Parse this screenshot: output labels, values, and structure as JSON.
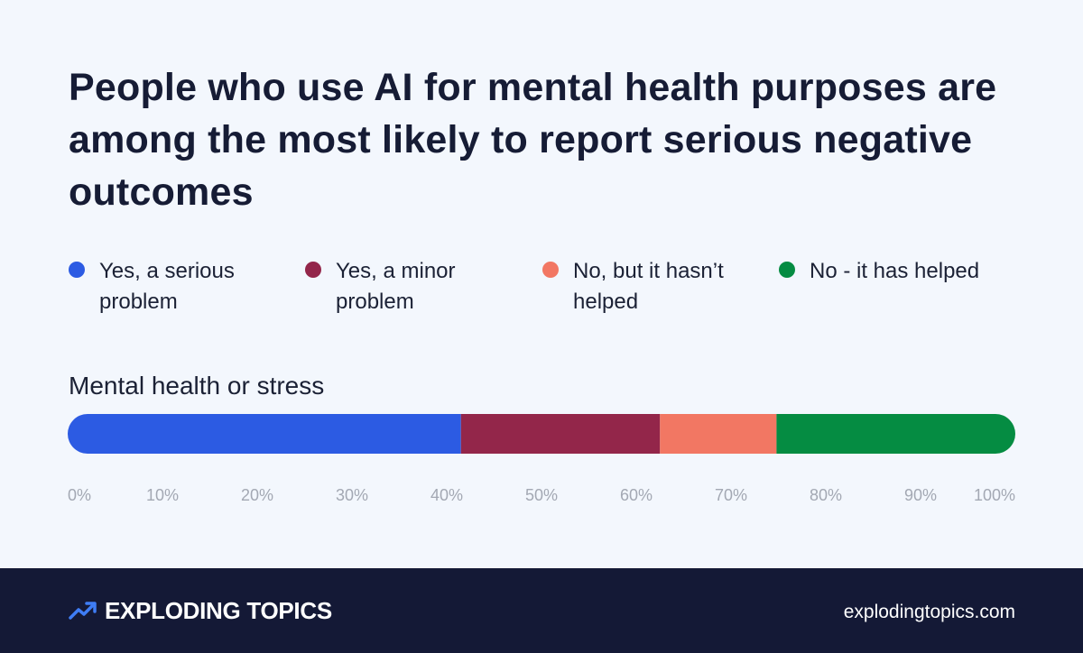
{
  "title": "People who use AI for mental health purposes are among the most likely to report serious negative outcomes",
  "footer": {
    "brand": "EXPLODING TOPICS",
    "site": "explodingtopics.com"
  },
  "chart_data": {
    "type": "bar",
    "orientation": "horizontal",
    "stacked": true,
    "categories": [
      "Mental health or stress"
    ],
    "xlim": [
      0,
      100
    ],
    "x_ticks": [
      "0%",
      "10%",
      "20%",
      "30%",
      "40%",
      "50%",
      "60%",
      "70%",
      "80%",
      "90%",
      "100%"
    ],
    "legend_position": "top",
    "series": [
      {
        "name": "Yes, a serious problem",
        "values": [
          41.5
        ],
        "color": "#2c5be3"
      },
      {
        "name": "Yes, a minor problem",
        "values": [
          21
        ],
        "color": "#93264a"
      },
      {
        "name": "No, but it hasn’t helped",
        "values": [
          12.3
        ],
        "color": "#f27763"
      },
      {
        "name": "No - it has helped",
        "values": [
          25.2
        ],
        "color": "#058c42"
      }
    ]
  }
}
